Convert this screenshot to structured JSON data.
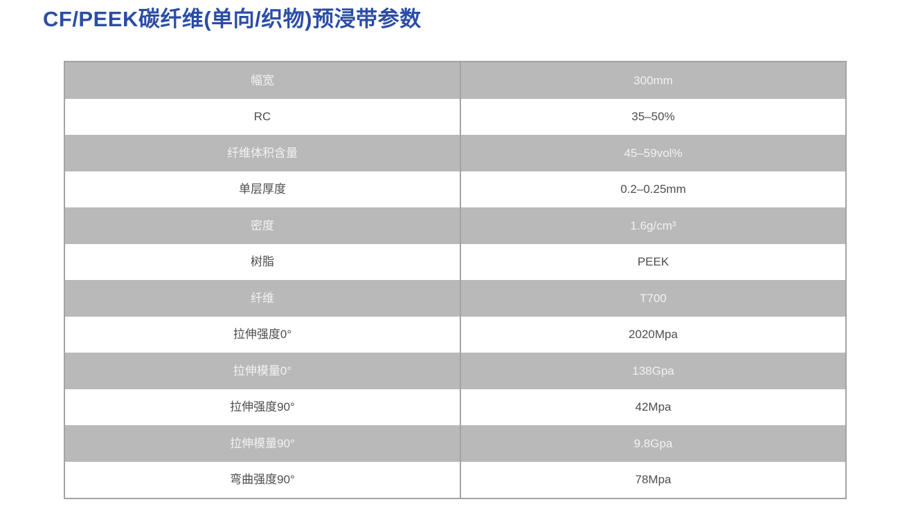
{
  "title": "CF/PEEK碳纤维(单向/织物)预浸带参数",
  "colors": {
    "title": "#2b4da4",
    "shaded_row_background": "#b9b9b9",
    "table_border": "#a3a3a3",
    "text_on_shaded": "#f2f2f2",
    "text_on_white": "#4d4d4d",
    "page_background": "#ffffff"
  },
  "table": {
    "rows": [
      {
        "label": "幅宽",
        "value": "300mm",
        "shaded": true
      },
      {
        "label": "RC",
        "value": "35–50%",
        "shaded": false
      },
      {
        "label": "纤维体积含量",
        "value": "45–59vol%",
        "shaded": true
      },
      {
        "label": "单层厚度",
        "value": "0.2–0.25mm",
        "shaded": false
      },
      {
        "label": "密度",
        "value": "1.6g/cm³",
        "shaded": true
      },
      {
        "label": "树脂",
        "value": "PEEK",
        "shaded": false
      },
      {
        "label": "纤维",
        "value": "T700",
        "shaded": true
      },
      {
        "label": "拉伸强度0°",
        "value": "2020Mpa",
        "shaded": false
      },
      {
        "label": "拉伸模量0°",
        "value": "138Gpa",
        "shaded": true
      },
      {
        "label": "拉伸强度90°",
        "value": "42Mpa",
        "shaded": false
      },
      {
        "label": "拉伸模量90°",
        "value": "9.8Gpa",
        "shaded": true
      },
      {
        "label": "弯曲强度90°",
        "value": "78Mpa",
        "shaded": false
      }
    ]
  }
}
